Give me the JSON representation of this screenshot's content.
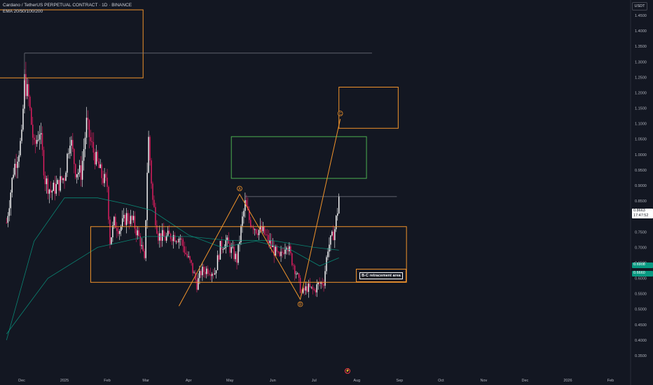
{
  "header": {
    "title": "Cardano / TetherUS PERPETUAL CONTRACT · 1D · BINANCE",
    "indicator": "EMA 20/50/100/200"
  },
  "price_axis": {
    "currency": "USDT",
    "current_price": "0.8663",
    "countdown": "17:47:52",
    "ema_value_1": "0.6908",
    "ema_value_2": "0.6660"
  },
  "annotation": {
    "label": "B-C retracement area"
  },
  "colors": {
    "background": "#131722",
    "up_candle": "#ffffff",
    "down_candle": "#e91e63",
    "ema": "#089981",
    "drawing_orange": "#f0932b",
    "drawing_green": "#4caf50",
    "grid_text": "#b2b5be"
  },
  "event_icon": {
    "name": "flash-icon",
    "glyph": "⚡"
  },
  "chart_data": {
    "type": "candlestick",
    "symbol": "ADAUSDT.P",
    "timeframe": "1D",
    "y_ticks": [
      1.45,
      1.4,
      1.35,
      1.3,
      1.25,
      1.2,
      1.15,
      1.1,
      1.05,
      1.0,
      0.95,
      0.9,
      0.85,
      0.8,
      0.75,
      0.7,
      0.65,
      0.6,
      0.55,
      0.5,
      0.45,
      0.4,
      0.35
    ],
    "y_tick_labels": [
      "1.4500",
      "1.4000",
      "1.3500",
      "1.3000",
      "1.2500",
      "1.2000",
      "1.1500",
      "1.1000",
      "1.0500",
      "1.0000",
      "0.9500",
      "0.9000",
      "0.8500",
      "0.8000",
      "0.7500",
      "0.7000",
      "0.6500",
      "0.6000",
      "0.5500",
      "0.5000",
      "0.4500",
      "0.4000",
      "0.3500"
    ],
    "ylim": [
      0.33,
      1.5
    ],
    "x_ticks": [
      {
        "label": "Dec",
        "date": "2024-12-01"
      },
      {
        "label": "2025",
        "date": "2025-01-01"
      },
      {
        "label": "Feb",
        "date": "2025-02-01"
      },
      {
        "label": "Mar",
        "date": "2025-03-01"
      },
      {
        "label": "Apr",
        "date": "2025-04-01"
      },
      {
        "label": "May",
        "date": "2025-05-01"
      },
      {
        "label": "Jun",
        "date": "2025-06-01"
      },
      {
        "label": "Jul",
        "date": "2025-07-01"
      },
      {
        "label": "Aug",
        "date": "2025-08-01"
      },
      {
        "label": "Sep",
        "date": "2025-09-01"
      },
      {
        "label": "Oct",
        "date": "2025-10-01"
      },
      {
        "label": "Nov",
        "date": "2025-11-01"
      },
      {
        "label": "Dec",
        "date": "2025-12-01"
      },
      {
        "label": "2026",
        "date": "2026-01-01"
      },
      {
        "label": "Feb",
        "date": "2026-02-01"
      }
    ],
    "price_path": [
      [
        "2024-11-20",
        0.78
      ],
      [
        "2024-11-25",
        0.95
      ],
      [
        "2024-12-01",
        1.05
      ],
      [
        "2024-12-03",
        1.24
      ],
      [
        "2024-12-06",
        1.18
      ],
      [
        "2024-12-10",
        1.02
      ],
      [
        "2024-12-14",
        1.08
      ],
      [
        "2024-12-18",
        0.92
      ],
      [
        "2024-12-22",
        0.88
      ],
      [
        "2024-12-27",
        0.9
      ],
      [
        "2025-01-01",
        0.93
      ],
      [
        "2025-01-05",
        1.06
      ],
      [
        "2025-01-09",
        0.95
      ],
      [
        "2025-01-13",
        0.94
      ],
      [
        "2025-01-17",
        1.1
      ],
      [
        "2025-01-20",
        1.04
      ],
      [
        "2025-01-24",
        0.98
      ],
      [
        "2025-01-28",
        0.93
      ],
      [
        "2025-02-01",
        0.9
      ],
      [
        "2025-02-03",
        0.72
      ],
      [
        "2025-02-06",
        0.78
      ],
      [
        "2025-02-10",
        0.76
      ],
      [
        "2025-02-15",
        0.8
      ],
      [
        "2025-02-20",
        0.78
      ],
      [
        "2025-02-25",
        0.72
      ],
      [
        "2025-02-28",
        0.65
      ],
      [
        "2025-03-02",
        0.95
      ],
      [
        "2025-03-03",
        1.05
      ],
      [
        "2025-03-06",
        0.85
      ],
      [
        "2025-03-10",
        0.74
      ],
      [
        "2025-03-15",
        0.73
      ],
      [
        "2025-03-20",
        0.74
      ],
      [
        "2025-03-26",
        0.73
      ],
      [
        "2025-03-30",
        0.68
      ],
      [
        "2025-04-03",
        0.64
      ],
      [
        "2025-04-07",
        0.58
      ],
      [
        "2025-04-10",
        0.62
      ],
      [
        "2025-04-15",
        0.63
      ],
      [
        "2025-04-20",
        0.62
      ],
      [
        "2025-04-24",
        0.7
      ],
      [
        "2025-04-28",
        0.72
      ],
      [
        "2025-05-02",
        0.69
      ],
      [
        "2025-05-06",
        0.66
      ],
      [
        "2025-05-10",
        0.79
      ],
      [
        "2025-05-12",
        0.84
      ],
      [
        "2025-05-15",
        0.79
      ],
      [
        "2025-05-20",
        0.76
      ],
      [
        "2025-05-25",
        0.75
      ],
      [
        "2025-05-29",
        0.72
      ],
      [
        "2025-06-02",
        0.69
      ],
      [
        "2025-06-06",
        0.66
      ],
      [
        "2025-06-11",
        0.72
      ],
      [
        "2025-06-14",
        0.67
      ],
      [
        "2025-06-18",
        0.62
      ],
      [
        "2025-06-22",
        0.55
      ],
      [
        "2025-06-26",
        0.57
      ],
      [
        "2025-07-01",
        0.56
      ],
      [
        "2025-07-04",
        0.58
      ],
      [
        "2025-07-08",
        0.59
      ],
      [
        "2025-07-11",
        0.7
      ],
      [
        "2025-07-14",
        0.73
      ],
      [
        "2025-07-16",
        0.76
      ],
      [
        "2025-07-18",
        0.82
      ],
      [
        "2025-07-19",
        0.8663
      ]
    ],
    "ema_20_50": [
      [
        "2024-11-20",
        0.4
      ],
      [
        "2024-12-10",
        0.72
      ],
      [
        "2025-01-01",
        0.86
      ],
      [
        "2025-01-25",
        0.86
      ],
      [
        "2025-02-15",
        0.84
      ],
      [
        "2025-03-05",
        0.82
      ],
      [
        "2025-04-01",
        0.74
      ],
      [
        "2025-04-25",
        0.7
      ],
      [
        "2025-05-20",
        0.72
      ],
      [
        "2025-06-15",
        0.69
      ],
      [
        "2025-07-05",
        0.64
      ],
      [
        "2025-07-19",
        0.666
      ]
    ],
    "ema_100_200": [
      [
        "2024-11-20",
        0.42
      ],
      [
        "2024-12-20",
        0.6
      ],
      [
        "2025-01-25",
        0.7
      ],
      [
        "2025-03-01",
        0.735
      ],
      [
        "2025-04-01",
        0.735
      ],
      [
        "2025-05-01",
        0.722
      ],
      [
        "2025-06-01",
        0.722
      ],
      [
        "2025-07-01",
        0.7
      ],
      [
        "2025-07-19",
        0.6908
      ]
    ],
    "drawings": {
      "rect_top_left": {
        "x1": "2024-11-01",
        "x2": "2025-02-27",
        "y1": 1.248,
        "y2": 1.468,
        "color": "orange"
      },
      "rect_c_target": {
        "x1": "2025-07-19",
        "x2": "2025-08-31",
        "y1": 1.085,
        "y2": 1.218,
        "color": "orange"
      },
      "rect_green": {
        "x1": "2025-05-02",
        "x2": "2025-08-08",
        "y1": 0.923,
        "y2": 1.058,
        "color": "green"
      },
      "rect_range": {
        "x1": "2025-01-20",
        "x2": "2025-09-06",
        "y1": 0.587,
        "y2": 0.767,
        "color": "orange"
      },
      "hline_top": {
        "x1": "2024-12-03",
        "x2": "2025-08-12",
        "y": 1.328
      },
      "hline_a": {
        "x1": "2025-05-12",
        "x2": "2025-08-30",
        "y": 0.864
      },
      "abc_wave": [
        {
          "label": "",
          "date": "2025-03-25",
          "price": 0.51
        },
        {
          "label": "A",
          "date": "2025-05-08",
          "price": 0.872
        },
        {
          "label": "B",
          "date": "2025-06-21",
          "price": 0.532
        },
        {
          "label": "C",
          "date": "2025-07-20",
          "price": 1.115
        }
      ]
    }
  }
}
